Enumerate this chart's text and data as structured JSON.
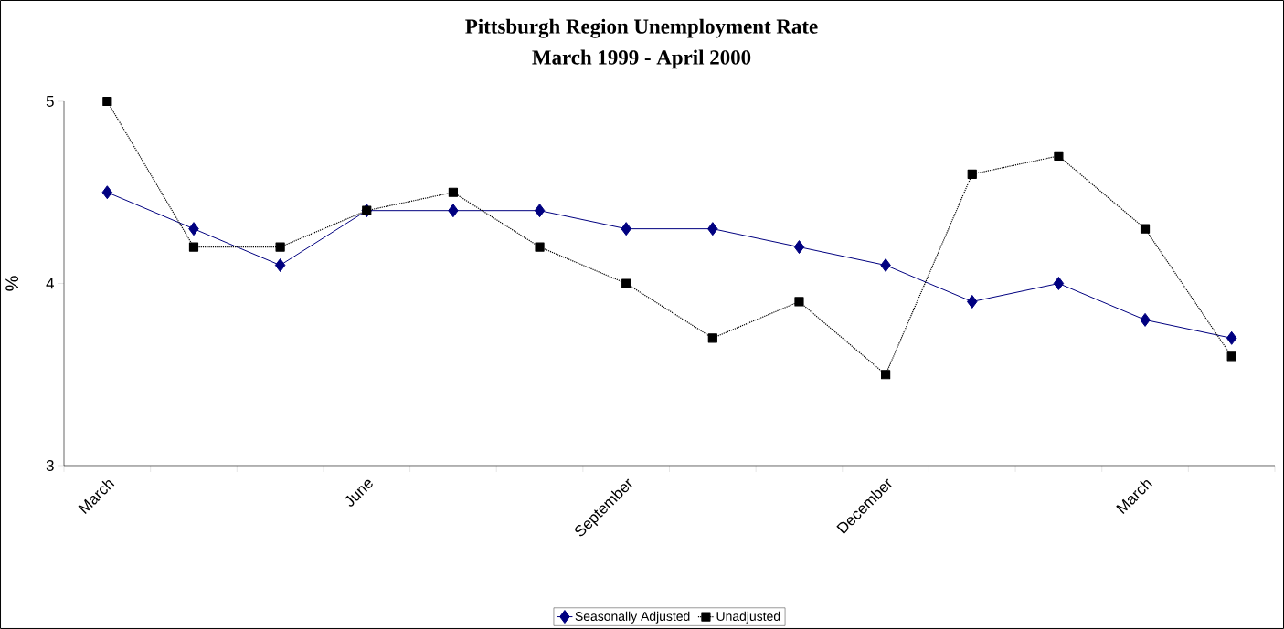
{
  "chart_data": {
    "type": "line",
    "title": "Pittsburgh Region Unemployment Rate",
    "subtitle": "March 1999 - April 2000",
    "ylabel": "%",
    "categories": [
      "March",
      null,
      null,
      "June",
      null,
      null,
      "September",
      null,
      null,
      "December",
      null,
      null,
      "March",
      null
    ],
    "series": [
      {
        "name": "Seasonally Adjusted",
        "color": "#000080",
        "marker": "diamond",
        "line_style": "solid",
        "values": [
          4.5,
          4.3,
          4.1,
          4.4,
          4.4,
          4.4,
          4.3,
          4.3,
          4.2,
          4.1,
          3.9,
          4.0,
          3.8,
          3.7
        ]
      },
      {
        "name": "Unadjusted",
        "color": "#000000",
        "marker": "square",
        "line_style": "dotted",
        "values": [
          5.0,
          4.2,
          4.2,
          4.4,
          4.5,
          4.2,
          4.0,
          3.7,
          3.9,
          3.5,
          4.6,
          4.7,
          4.3,
          3.6
        ]
      }
    ],
    "ylim": [
      3,
      5
    ],
    "yticks": [
      3,
      4,
      5
    ],
    "grid": false,
    "legend": "bottom"
  }
}
